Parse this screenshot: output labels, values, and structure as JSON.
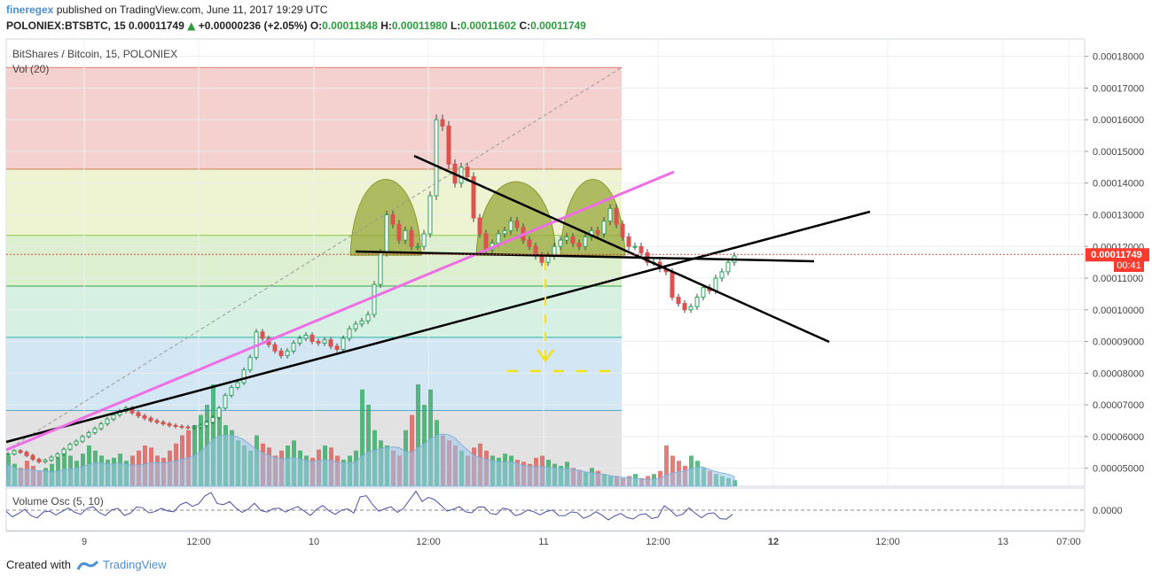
{
  "header": {
    "user": "fineregex",
    "published_text": "published on TradingView.com, June 11, 2017 19:29 UTC",
    "symbol_line": "POLONIEX:BTSBTC, 15",
    "last_value": "0.00011749",
    "change": "+0.00000236 (+2.05%)",
    "open_label": "O:",
    "open": "0.00011848",
    "high_label": "H:",
    "high": "0.00011980",
    "low_label": "L:",
    "low": "0.00011602",
    "close_label": "C:",
    "close": "0.00011749"
  },
  "pane": {
    "title": "BitShares / Bitcoin, 15, POLONIEX",
    "vol_label": "Vol (20)",
    "osc_label": "Volume Osc (5, 10)",
    "osc_axis_value": "0.0000"
  },
  "price_badge": {
    "value": "0.00011749",
    "countdown": "00:41",
    "color": "#ff3b2f"
  },
  "footer": {
    "created_with": "Created with",
    "brand": "TradingView"
  },
  "colors": {
    "up": "#26a65b",
    "down": "#d9534f",
    "trendline": "#000000",
    "magenta_line": "#ee6ee6",
    "fib_target": "#f2e21a",
    "pattern_fill": "#9aa83a"
  },
  "chart_data": {
    "type": "line",
    "title": "BitShares / Bitcoin, 15, POLONIEX",
    "y_axis": {
      "ticks": [
        "0.00018000",
        "0.00017000",
        "0.00016000",
        "0.00015000",
        "0.00014000",
        "0.00013000",
        "0.00012000",
        "0.00011000",
        "0.00010000",
        "0.00009000",
        "0.00008000",
        "0.00007000",
        "0.00006000",
        "0.00005000"
      ],
      "ylim": [
        4.43e-05,
        0.0001855
      ]
    },
    "x_axis": {
      "ticks": [
        "9",
        "12:00",
        "10",
        "12:00",
        "11",
        "12:00",
        "12",
        "12:00",
        "13",
        "07:00"
      ]
    },
    "series": [
      {
        "values": [
          [
            0,
            5.45e-05
          ],
          [
            7,
            5.55e-05
          ],
          [
            14,
            5.5e-05
          ],
          [
            21,
            5.4e-05
          ],
          [
            28,
            5.28e-05
          ],
          [
            35,
            5.2e-05
          ],
          [
            42,
            5.25e-05
          ],
          [
            49,
            5.35e-05
          ],
          [
            56,
            5.45e-05
          ],
          [
            63,
            5.6e-05
          ],
          [
            70,
            5.75e-05
          ],
          [
            77,
            5.85e-05
          ],
          [
            84,
            6e-05
          ],
          [
            91,
            6.12e-05
          ],
          [
            98,
            6.25e-05
          ],
          [
            105,
            6.4e-05
          ],
          [
            112,
            6.55e-05
          ],
          [
            119,
            6.68e-05
          ],
          [
            126,
            6.8e-05
          ],
          [
            133,
            6.9e-05
          ],
          [
            140,
            6.75e-05
          ],
          [
            147,
            6.65e-05
          ],
          [
            154,
            6.58e-05
          ],
          [
            161,
            6.5e-05
          ],
          [
            168,
            6.45e-05
          ],
          [
            175,
            6.4e-05
          ],
          [
            182,
            6.35e-05
          ],
          [
            189,
            6.32e-05
          ],
          [
            196,
            6.3e-05
          ],
          [
            203,
            6.28e-05
          ],
          [
            210,
            6.3e-05
          ],
          [
            217,
            6.35e-05
          ],
          [
            224,
            6.45e-05
          ],
          [
            231,
            6.6e-05
          ],
          [
            238,
            6.9e-05
          ],
          [
            245,
            7.3e-05
          ],
          [
            252,
            7.55e-05
          ],
          [
            259,
            7.7e-05
          ],
          [
            266,
            8.1e-05
          ],
          [
            273,
            8.5e-05
          ],
          [
            280,
            9.3e-05
          ],
          [
            287,
            9.1e-05
          ],
          [
            294,
            8.9e-05
          ],
          [
            301,
            8.7e-05
          ],
          [
            308,
            8.55e-05
          ],
          [
            315,
            8.7e-05
          ],
          [
            322,
            8.95e-05
          ],
          [
            329,
            9.1e-05
          ],
          [
            336,
            9.2e-05
          ],
          [
            343,
            9e-05
          ],
          [
            350,
            8.95e-05
          ],
          [
            357,
            9.05e-05
          ],
          [
            364,
            8.85e-05
          ],
          [
            371,
            8.75e-05
          ],
          [
            378,
            9.1e-05
          ],
          [
            385,
            9.4e-05
          ],
          [
            392,
            9.55e-05
          ],
          [
            399,
            9.65e-05
          ],
          [
            406,
            9.85e-05
          ],
          [
            413,
            0.000108
          ],
          [
            420,
            0.000118
          ],
          [
            427,
            0.00013
          ],
          [
            434,
            0.000127
          ],
          [
            441,
            0.000122
          ],
          [
            448,
            0.000125
          ],
          [
            455,
            0.00012
          ],
          [
            462,
            0.00012
          ],
          [
            469,
            0.000124
          ],
          [
            476,
            0.000136
          ],
          [
            483,
            0.00016
          ],
          [
            490,
            0.000158
          ],
          [
            497,
            0.000146
          ],
          [
            504,
            0.00014
          ],
          [
            511,
            0.000145
          ],
          [
            518,
            0.000142
          ],
          [
            525,
            0.000129
          ],
          [
            532,
            0.000124
          ],
          [
            539,
            0.000119
          ],
          [
            546,
            0.000121
          ],
          [
            553,
            0.000124
          ],
          [
            560,
            0.000125
          ],
          [
            567,
            0.000128
          ],
          [
            574,
            0.000126
          ],
          [
            581,
            0.000122
          ],
          [
            588,
            0.00012
          ],
          [
            595,
            0.000117
          ],
          [
            602,
            0.000115
          ],
          [
            609,
            0.000117
          ],
          [
            616,
            0.00012
          ],
          [
            623,
            0.000122
          ],
          [
            630,
            0.000123
          ],
          [
            637,
            0.000121
          ],
          [
            644,
            0.00012
          ],
          [
            651,
            0.000123
          ],
          [
            658,
            0.000125
          ],
          [
            665,
            0.000124
          ],
          [
            672,
            0.000128
          ],
          [
            679,
            0.000132
          ],
          [
            686,
            0.000127
          ],
          [
            693,
            0.000123
          ],
          [
            700,
            0.00012
          ],
          [
            707,
            0.00012
          ],
          [
            714,
            0.000118
          ],
          [
            721,
            0.000115
          ],
          [
            728,
            0.000115
          ],
          [
            735,
            0.000113
          ],
          [
            742,
            0.000112
          ],
          [
            749,
            0.000104
          ],
          [
            756,
            0.000102
          ],
          [
            763,
            0.0001
          ],
          [
            770,
            0.000101
          ],
          [
            777,
            0.000104
          ],
          [
            784,
            0.000107
          ],
          [
            791,
            0.000106
          ],
          [
            798,
            0.00011
          ],
          [
            805,
            0.000112
          ],
          [
            812,
            0.000115
          ],
          [
            819,
            0.000117
          ]
        ]
      }
    ],
    "volume_marks": [
      0.3,
      0.22,
      0.18,
      0.25,
      0.2,
      0.15,
      0.18,
      0.22,
      0.28,
      0.35,
      0.3,
      0.25,
      0.32,
      0.4,
      0.35,
      0.3,
      0.26,
      0.28,
      0.32,
      0.25,
      0.3,
      0.35,
      0.4,
      0.38,
      0.3,
      0.28,
      0.35,
      0.42,
      0.5,
      0.55,
      0.6,
      0.7,
      0.8,
      1.0,
      0.75,
      0.6,
      0.55,
      0.45,
      0.4,
      0.35,
      0.5,
      0.42,
      0.38,
      0.3,
      0.35,
      0.4,
      0.45,
      0.35,
      0.3,
      0.28,
      0.36,
      0.4,
      0.38,
      0.3,
      0.26,
      0.3,
      0.35,
      0.95,
      0.8,
      0.55,
      0.45,
      0.4,
      0.35,
      0.3,
      0.55,
      0.7,
      1.0,
      0.8,
      0.95,
      0.65,
      0.5,
      0.45,
      0.4,
      0.35,
      0.3,
      0.38,
      0.42,
      0.35,
      0.3,
      0.28,
      0.32,
      0.3,
      0.26,
      0.24,
      0.22,
      0.28,
      0.3,
      0.26,
      0.22,
      0.2,
      0.24,
      0.18,
      0.16,
      0.14,
      0.18,
      0.15,
      0.12,
      0.1,
      0.1,
      0.08,
      0.1,
      0.12,
      0.08,
      0.1,
      0.12,
      0.15,
      0.4,
      0.3,
      0.25,
      0.2,
      0.3,
      0.25,
      0.18,
      0.15,
      0.12,
      0.1,
      0.08,
      0.06
    ],
    "fib_levels": [
      0.0001765,
      0.0001444,
      0.0001235,
      0.0001075,
      9.13e-05,
      6.82e-05
    ],
    "grid": true,
    "legend": "none"
  }
}
